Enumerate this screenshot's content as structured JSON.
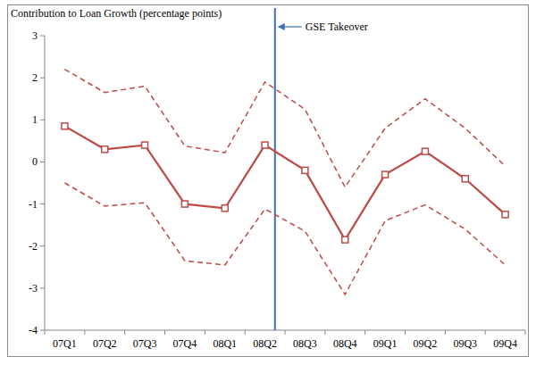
{
  "chart_data": {
    "type": "line",
    "y_label": "Contribution to Loan Growth (percentage points)",
    "categories": [
      "07Q1",
      "07Q2",
      "07Q3",
      "07Q4",
      "08Q1",
      "08Q2",
      "08Q3",
      "08Q4",
      "09Q1",
      "09Q2",
      "09Q3",
      "09Q4"
    ],
    "series": [
      {
        "color": "#be4b48",
        "line_style": "solid",
        "marker": "square",
        "values": [
          0.85,
          0.3,
          0.4,
          -1.0,
          -1.1,
          0.4,
          -0.2,
          -1.85,
          -0.3,
          0.25,
          -0.4,
          -1.25
        ]
      },
      {
        "color": "#be4b48",
        "line_style": "dashed",
        "marker": "none",
        "values": [
          2.2,
          1.65,
          1.8,
          0.38,
          0.22,
          1.9,
          1.25,
          -0.6,
          0.8,
          1.5,
          0.8,
          -0.1
        ]
      },
      {
        "color": "#be4b48",
        "line_style": "dashed",
        "marker": "none",
        "values": [
          -0.5,
          -1.05,
          -0.97,
          -2.35,
          -2.45,
          -1.12,
          -1.65,
          -3.15,
          -1.4,
          -1.02,
          -1.6,
          -2.45
        ]
      }
    ],
    "annotations": [
      {
        "text": "GSE Takeover",
        "x": 5.75,
        "color": "#3f6fb5"
      }
    ],
    "ylim": [
      -4,
      3
    ],
    "yticks": [
      -4,
      -3,
      -2,
      -1,
      0,
      1,
      2,
      3
    ],
    "grid": false
  }
}
